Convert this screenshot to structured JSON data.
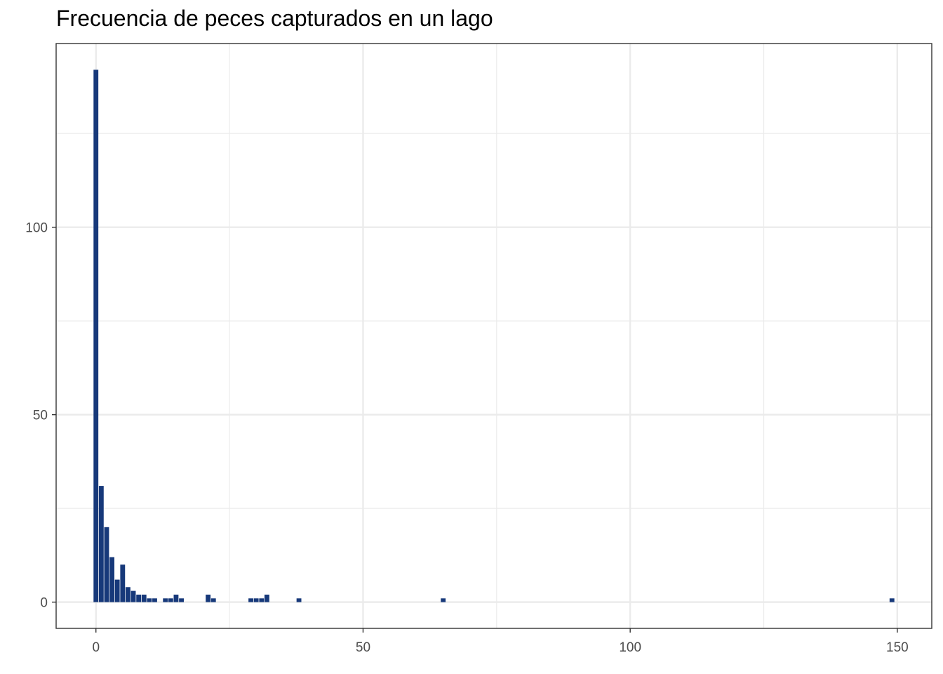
{
  "chart_data": {
    "type": "bar",
    "title": "Frecuencia de peces capturados en un lago",
    "xlabel": "",
    "ylabel": "",
    "xlim": [
      -7.45,
      156.45
    ],
    "ylim": [
      -7,
      149
    ],
    "x_ticks": [
      0,
      50,
      100,
      150
    ],
    "x_minor": [
      25,
      75,
      125
    ],
    "y_ticks": [
      0,
      50,
      100
    ],
    "y_minor": [
      25,
      75,
      125
    ],
    "grid": true,
    "legend": "none",
    "bar_color": "#17397a",
    "x": [
      0,
      1,
      2,
      3,
      4,
      5,
      6,
      7,
      8,
      9,
      10,
      11,
      13,
      14,
      15,
      16,
      21,
      22,
      29,
      30,
      31,
      32,
      38,
      65,
      149
    ],
    "values": [
      142,
      31,
      20,
      12,
      6,
      10,
      4,
      3,
      2,
      2,
      1,
      1,
      1,
      1,
      2,
      1,
      2,
      1,
      1,
      1,
      1,
      2,
      1,
      1,
      1
    ]
  }
}
